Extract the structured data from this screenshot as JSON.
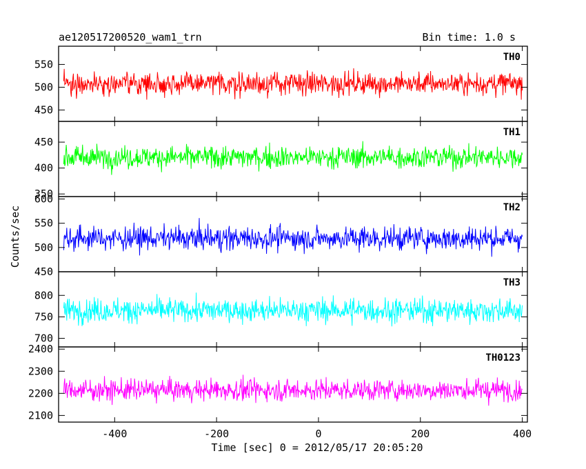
{
  "header": {
    "title": "ae120517200520_wam1_trn",
    "bin_time": "Bin time: 1.0 s"
  },
  "chart_data": {
    "type": "line",
    "xlabel": "Time [sec] 0 = 2012/05/17 20:05:20",
    "ylabel": "Counts/sec",
    "xlim": [
      -510,
      410
    ],
    "xticks": [
      -400,
      -200,
      0,
      200,
      400
    ],
    "x_range": [
      -500,
      400
    ],
    "panels": [
      {
        "name": "TH0",
        "color": "#ff0000",
        "ylim": [
          425,
          590
        ],
        "yticks": [
          450,
          500,
          550
        ],
        "mean": 508,
        "spread": 24,
        "clip_low": 430,
        "clip_high": 590
      },
      {
        "name": "TH1",
        "color": "#00ff00",
        "ylim": [
          345,
          490
        ],
        "yticks": [
          350,
          400,
          450
        ],
        "mean": 421,
        "spread": 21,
        "clip_low": 350,
        "clip_high": 485
      },
      {
        "name": "TH2",
        "color": "#0000ff",
        "ylim": [
          450,
          605
        ],
        "yticks": [
          450,
          500,
          550,
          600
        ],
        "mean": 519,
        "spread": 24,
        "clip_low": 452,
        "clip_high": 605
      },
      {
        "name": "TH3",
        "color": "#00ffff",
        "ylim": [
          680,
          855
        ],
        "yticks": [
          700,
          750,
          800
        ],
        "mean": 765,
        "spread": 27,
        "clip_low": 685,
        "clip_high": 855
      },
      {
        "name": "TH0123",
        "color": "#ff00ff",
        "ylim": [
          2070,
          2410
        ],
        "yticks": [
          2100,
          2200,
          2300,
          2400
        ],
        "mean": 2215,
        "spread": 47,
        "clip_low": 2070,
        "clip_high": 2405
      }
    ]
  }
}
